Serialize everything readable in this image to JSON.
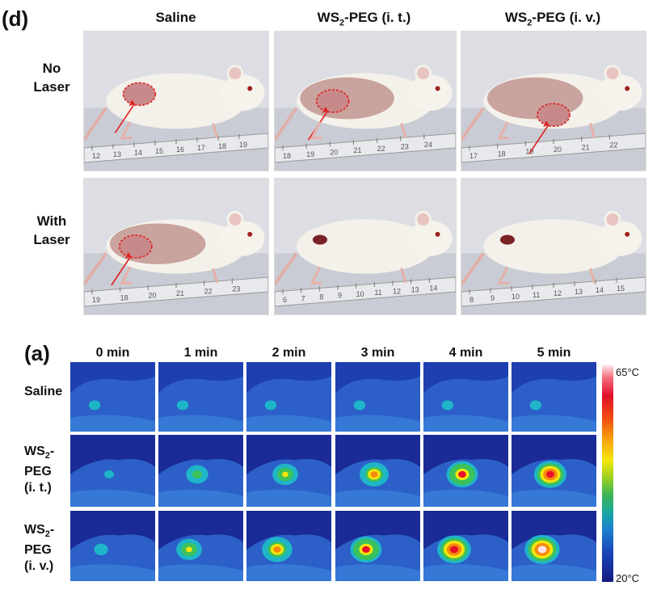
{
  "panel_d": {
    "letter": "(d)",
    "columns": [
      {
        "pre": "Saline",
        "sub": "",
        "post": ""
      },
      {
        "pre": "WS",
        "sub": "2",
        "post": "-PEG (i. t.)"
      },
      {
        "pre": "WS",
        "sub": "2",
        "post": "-PEG (i. v.)"
      }
    ],
    "rows": [
      {
        "line1": "No",
        "line2": "Laser"
      },
      {
        "line1": "With",
        "line2": "Laser"
      }
    ],
    "ruler_numbers": [
      [
        "12",
        "13",
        "14",
        "15",
        "16",
        "17",
        "18",
        "19"
      ],
      [
        "18",
        "19",
        "20",
        "21",
        "22",
        "23",
        "24"
      ],
      [
        "17",
        "18",
        "19",
        "20",
        "21",
        "22"
      ],
      [
        "19",
        "18",
        "20",
        "21",
        "22",
        "23"
      ],
      [
        "6",
        "7",
        "8",
        "9",
        "10",
        "11",
        "12",
        "13",
        "14"
      ],
      [
        "8",
        "9",
        "10",
        "11",
        "12",
        "13",
        "14",
        "15"
      ]
    ]
  },
  "panel_a": {
    "letter": "(a)",
    "times": [
      "0 min",
      "1 min",
      "2 min",
      "3 min",
      "4 min",
      "5 min"
    ],
    "rows": [
      {
        "lines": [
          "Saline"
        ],
        "sub_line": null
      },
      {
        "lines": [
          "WS",
          "PEG",
          "(i. t.)"
        ],
        "sub": "2",
        "sub_line": 0
      },
      {
        "lines": [
          "WS",
          "PEG",
          "(i. v.)"
        ],
        "sub": "2",
        "sub_line": 0
      }
    ],
    "hotspot_levels": [
      [
        0.1,
        0.1,
        0.1,
        0.1,
        0.1,
        0.1
      ],
      [
        0.0,
        0.45,
        0.6,
        0.75,
        0.85,
        0.9
      ],
      [
        0.1,
        0.6,
        0.8,
        0.85,
        0.95,
        1.0
      ]
    ],
    "colorbar": {
      "max_label": "65°C",
      "min_label": "20°C"
    }
  }
}
